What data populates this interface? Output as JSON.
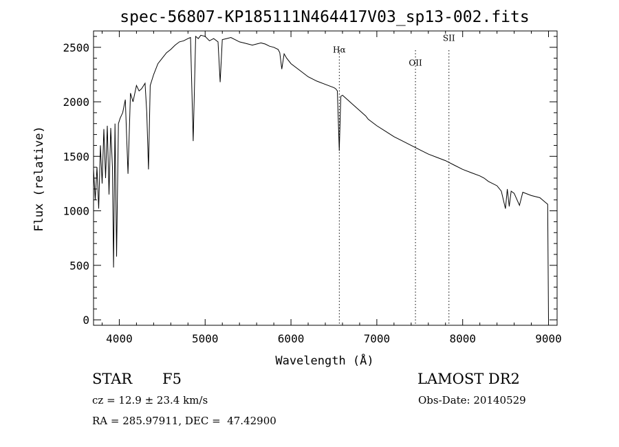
{
  "chart_data": {
    "type": "line",
    "title": "spec-56807-KP185111N464417V03_sp13-002.fits",
    "xlabel": "Wavelength (Å)",
    "ylabel": "Flux (relative)",
    "xlim": [
      3700,
      9100
    ],
    "ylim": [
      -50,
      2650
    ],
    "xticks": [
      4000,
      5000,
      6000,
      7000,
      8000,
      9000
    ],
    "yticks": [
      0,
      500,
      1000,
      1500,
      2000,
      2500
    ],
    "grid": false,
    "line_color": "#000000",
    "series": [
      {
        "x": [
          3700,
          3720,
          3740,
          3760,
          3780,
          3800,
          3820,
          3840,
          3860,
          3880,
          3900,
          3920,
          3933,
          3950,
          3968,
          3990,
          4010,
          4040,
          4070,
          4101,
          4130,
          4160,
          4200,
          4230,
          4260,
          4300,
          4320,
          4340,
          4360,
          4400,
          4450,
          4500,
          4550,
          4600,
          4650,
          4700,
          4750,
          4800,
          4830,
          4861,
          4890,
          4920,
          4950,
          5000,
          5050,
          5100,
          5150,
          5175,
          5200,
          5250,
          5300,
          5350,
          5400,
          5450,
          5500,
          5550,
          5600,
          5650,
          5700,
          5750,
          5800,
          5850,
          5870,
          5893,
          5920,
          5950,
          6000,
          6100,
          6200,
          6300,
          6400,
          6500,
          6520,
          6540,
          6563,
          6580,
          6600,
          6700,
          6800,
          6870,
          6900,
          7000,
          7100,
          7200,
          7300,
          7400,
          7500,
          7600,
          7700,
          7800,
          7900,
          8000,
          8100,
          8200,
          8250,
          8300,
          8400,
          8450,
          8498,
          8520,
          8542,
          8565,
          8600,
          8662,
          8700,
          8800,
          8900,
          8960,
          8990,
          9000
        ],
        "y": [
          1380,
          1100,
          1400,
          1020,
          1600,
          1250,
          1750,
          1300,
          1780,
          1150,
          1760,
          1400,
          480,
          1800,
          580,
          1800,
          1850,
          1900,
          2020,
          1340,
          2080,
          2000,
          2150,
          2100,
          2120,
          2170,
          1900,
          1380,
          2150,
          2250,
          2350,
          2400,
          2450,
          2480,
          2520,
          2550,
          2560,
          2580,
          2590,
          1640,
          2600,
          2580,
          2610,
          2600,
          2560,
          2580,
          2550,
          2180,
          2570,
          2580,
          2590,
          2570,
          2550,
          2540,
          2530,
          2520,
          2530,
          2540,
          2530,
          2510,
          2500,
          2480,
          2450,
          2300,
          2440,
          2400,
          2350,
          2290,
          2230,
          2190,
          2160,
          2130,
          2120,
          2100,
          1550,
          2050,
          2060,
          1990,
          1920,
          1870,
          1840,
          1780,
          1730,
          1680,
          1640,
          1600,
          1560,
          1520,
          1490,
          1460,
          1420,
          1380,
          1350,
          1320,
          1300,
          1270,
          1230,
          1180,
          1020,
          1200,
          1040,
          1180,
          1160,
          1050,
          1170,
          1140,
          1120,
          1080,
          1060,
          0
        ]
      }
    ],
    "annotations": [
      {
        "label": "Hα",
        "x": 6563,
        "label_y": 2450
      },
      {
        "label": "OII",
        "x": 7450,
        "label_y": 2330
      },
      {
        "label": "SII",
        "x": 7840,
        "label_y": 2560
      }
    ]
  },
  "footer": {
    "object_class": "STAR",
    "subclass": "F5",
    "survey": "LAMOST DR2",
    "cz": "cz = 12.9 ± 23.4 km/s",
    "obs_date": "Obs-Date: 20140529",
    "coords": "RA = 285.97911, DEC =  47.42900"
  }
}
